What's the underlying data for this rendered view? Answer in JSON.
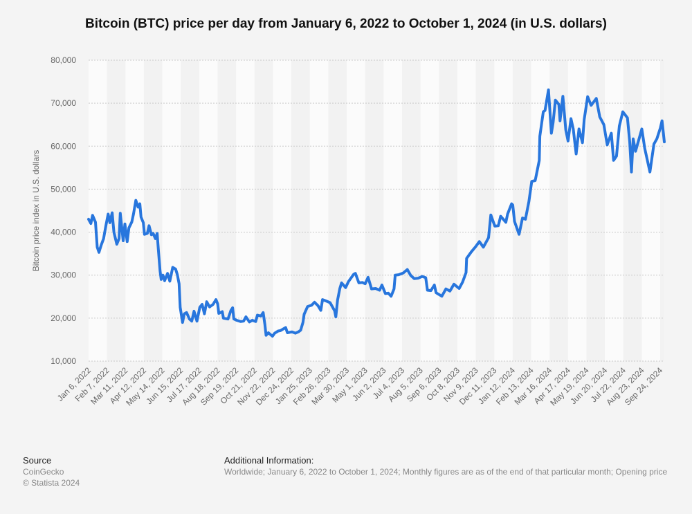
{
  "chart_data": {
    "type": "line",
    "title": "Bitcoin (BTC) price per day from January 6, 2022 to October 1, 2024 (in U.S. dollars)",
    "ylabel": "Bitcoin price index in U.S. dollars",
    "xlabel": "",
    "ylim": [
      10000,
      80000
    ],
    "xlim": [
      "Jan 6, 2022",
      "Oct 1, 2024"
    ],
    "y_ticks": [
      "10,000",
      "20,000",
      "30,000",
      "40,000",
      "50,000",
      "60,000",
      "70,000",
      "80,000"
    ],
    "y_tick_values": [
      10000,
      20000,
      30000,
      40000,
      50000,
      60000,
      70000,
      80000
    ],
    "x_ticks": [
      "Jan 6, 2022",
      "Feb 7, 2022",
      "Mar 11, 2022",
      "Apr 12, 2022",
      "May 14, 2022",
      "Jun 15, 2022",
      "Jul 17, 2022",
      "Aug 18, 2022",
      "Sep 19, 2022",
      "Oct 21, 2022",
      "Nov 22, 2022",
      "Dec 24, 2022",
      "Jan 25, 2023",
      "Feb 26, 2023",
      "Mar 30, 2023",
      "May 1, 2023",
      "Jun 2, 2023",
      "Jul 4, 2023",
      "Aug 5, 2023",
      "Sep 6, 2023",
      "Oct 8, 2023",
      "Nov 9, 2023",
      "Dec 11, 2023",
      "Jan 12, 2024",
      "Feb 13, 2024",
      "Mar 16, 2024",
      "Apr 17, 2024",
      "May 19, 2024",
      "Jun 20, 2024",
      "Jul 22, 2024",
      "Aug 23, 2024",
      "Sep 24, 2024"
    ],
    "grid": true,
    "line_color": "#2876dd",
    "series": [
      {
        "points": [
          [
            "2022-01-06",
            43000
          ],
          [
            "2022-01-10",
            42000
          ],
          [
            "2022-01-13",
            43900
          ],
          [
            "2022-01-18",
            42300
          ],
          [
            "2022-01-21",
            36500
          ],
          [
            "2022-01-24",
            35300
          ],
          [
            "2022-01-28",
            37000
          ],
          [
            "2022-02-01",
            38500
          ],
          [
            "2022-02-05",
            41500
          ],
          [
            "2022-02-09",
            44200
          ],
          [
            "2022-02-12",
            42200
          ],
          [
            "2022-02-16",
            44500
          ],
          [
            "2022-02-19",
            40000
          ],
          [
            "2022-02-24",
            37200
          ],
          [
            "2022-02-28",
            38500
          ],
          [
            "2022-03-02",
            44400
          ],
          [
            "2022-03-07",
            38000
          ],
          [
            "2022-03-10",
            41900
          ],
          [
            "2022-03-14",
            37800
          ],
          [
            "2022-03-17",
            41000
          ],
          [
            "2022-03-22",
            42400
          ],
          [
            "2022-03-25",
            44300
          ],
          [
            "2022-03-29",
            47400
          ],
          [
            "2022-04-02",
            45800
          ],
          [
            "2022-04-05",
            46600
          ],
          [
            "2022-04-07",
            43500
          ],
          [
            "2022-04-11",
            42200
          ],
          [
            "2022-04-13",
            39500
          ],
          [
            "2022-04-18",
            39700
          ],
          [
            "2022-04-21",
            41500
          ],
          [
            "2022-04-25",
            39400
          ],
          [
            "2022-04-28",
            39700
          ],
          [
            "2022-05-02",
            38500
          ],
          [
            "2022-05-05",
            39700
          ],
          [
            "2022-05-07",
            36000
          ],
          [
            "2022-05-10",
            31000
          ],
          [
            "2022-05-12",
            29000
          ],
          [
            "2022-05-15",
            30000
          ],
          [
            "2022-05-18",
            28700
          ],
          [
            "2022-05-23",
            30400
          ],
          [
            "2022-05-27",
            28600
          ],
          [
            "2022-06-01",
            31800
          ],
          [
            "2022-06-06",
            31400
          ],
          [
            "2022-06-09",
            30100
          ],
          [
            "2022-06-12",
            28000
          ],
          [
            "2022-06-14",
            22500
          ],
          [
            "2022-06-18",
            19000
          ],
          [
            "2022-06-21",
            21000
          ],
          [
            "2022-06-25",
            21300
          ],
          [
            "2022-06-30",
            19800
          ],
          [
            "2022-07-04",
            19300
          ],
          [
            "2022-07-08",
            21600
          ],
          [
            "2022-07-13",
            19300
          ],
          [
            "2022-07-18",
            22500
          ],
          [
            "2022-07-22",
            23200
          ],
          [
            "2022-07-26",
            21000
          ],
          [
            "2022-07-30",
            23800
          ],
          [
            "2022-08-04",
            22600
          ],
          [
            "2022-08-10",
            23200
          ],
          [
            "2022-08-15",
            24300
          ],
          [
            "2022-08-18",
            23300
          ],
          [
            "2022-08-20",
            21100
          ],
          [
            "2022-08-26",
            21500
          ],
          [
            "2022-08-28",
            20000
          ],
          [
            "2022-09-05",
            19800
          ],
          [
            "2022-09-10",
            21800
          ],
          [
            "2022-09-13",
            22400
          ],
          [
            "2022-09-15",
            19800
          ],
          [
            "2022-09-20",
            19500
          ],
          [
            "2022-09-27",
            19200
          ],
          [
            "2022-10-02",
            19300
          ],
          [
            "2022-10-06",
            20300
          ],
          [
            "2022-10-12",
            19100
          ],
          [
            "2022-10-17",
            19500
          ],
          [
            "2022-10-23",
            19200
          ],
          [
            "2022-10-26",
            20700
          ],
          [
            "2022-11-01",
            20500
          ],
          [
            "2022-11-05",
            21300
          ],
          [
            "2022-11-08",
            18500
          ],
          [
            "2022-11-10",
            16000
          ],
          [
            "2022-11-14",
            16600
          ],
          [
            "2022-11-21",
            15800
          ],
          [
            "2022-11-25",
            16500
          ],
          [
            "2022-12-01",
            17000
          ],
          [
            "2022-12-05",
            17100
          ],
          [
            "2022-12-14",
            17800
          ],
          [
            "2022-12-17",
            16600
          ],
          [
            "2022-12-25",
            16800
          ],
          [
            "2022-12-31",
            16500
          ],
          [
            "2023-01-05",
            16800
          ],
          [
            "2023-01-09",
            17200
          ],
          [
            "2023-01-13",
            19000
          ],
          [
            "2023-01-15",
            20900
          ],
          [
            "2023-01-21",
            22700
          ],
          [
            "2023-01-28",
            23000
          ],
          [
            "2023-02-02",
            23700
          ],
          [
            "2023-02-08",
            22900
          ],
          [
            "2023-02-13",
            21800
          ],
          [
            "2023-02-16",
            24300
          ],
          [
            "2023-02-22",
            24000
          ],
          [
            "2023-03-01",
            23600
          ],
          [
            "2023-03-09",
            21700
          ],
          [
            "2023-03-11",
            20300
          ],
          [
            "2023-03-14",
            24200
          ],
          [
            "2023-03-18",
            26900
          ],
          [
            "2023-03-21",
            28200
          ],
          [
            "2023-03-28",
            27100
          ],
          [
            "2023-04-02",
            28500
          ],
          [
            "2023-04-11",
            30200
          ],
          [
            "2023-04-14",
            30400
          ],
          [
            "2023-04-20",
            28200
          ],
          [
            "2023-04-26",
            28300
          ],
          [
            "2023-05-01",
            28000
          ],
          [
            "2023-05-06",
            29500
          ],
          [
            "2023-05-12",
            26800
          ],
          [
            "2023-05-19",
            26900
          ],
          [
            "2023-05-26",
            26500
          ],
          [
            "2023-05-30",
            27700
          ],
          [
            "2023-06-05",
            25700
          ],
          [
            "2023-06-10",
            25800
          ],
          [
            "2023-06-15",
            25100
          ],
          [
            "2023-06-20",
            26800
          ],
          [
            "2023-06-22",
            30000
          ],
          [
            "2023-06-28",
            30100
          ],
          [
            "2023-07-06",
            30500
          ],
          [
            "2023-07-13",
            31300
          ],
          [
            "2023-07-19",
            29900
          ],
          [
            "2023-07-25",
            29200
          ],
          [
            "2023-08-01",
            29300
          ],
          [
            "2023-08-08",
            29700
          ],
          [
            "2023-08-14",
            29400
          ],
          [
            "2023-08-17",
            26500
          ],
          [
            "2023-08-23",
            26400
          ],
          [
            "2023-08-29",
            27700
          ],
          [
            "2023-09-01",
            25900
          ],
          [
            "2023-09-11",
            25100
          ],
          [
            "2023-09-18",
            26800
          ],
          [
            "2023-09-25",
            26300
          ],
          [
            "2023-10-02",
            27900
          ],
          [
            "2023-10-11",
            26900
          ],
          [
            "2023-10-17",
            28400
          ],
          [
            "2023-10-23",
            30600
          ],
          [
            "2023-10-24",
            33900
          ],
          [
            "2023-11-01",
            35400
          ],
          [
            "2023-11-09",
            36700
          ],
          [
            "2023-11-15",
            37800
          ],
          [
            "2023-11-22",
            36500
          ],
          [
            "2023-12-01",
            38700
          ],
          [
            "2023-12-05",
            44000
          ],
          [
            "2023-12-12",
            41400
          ],
          [
            "2023-12-18",
            41500
          ],
          [
            "2023-12-22",
            43700
          ],
          [
            "2023-12-31",
            42300
          ],
          [
            "2024-01-03",
            44200
          ],
          [
            "2024-01-10",
            46600
          ],
          [
            "2024-01-12",
            46300
          ],
          [
            "2024-01-15",
            42500
          ],
          [
            "2024-01-23",
            39500
          ],
          [
            "2024-01-29",
            43300
          ],
          [
            "2024-02-03",
            43000
          ],
          [
            "2024-02-09",
            47100
          ],
          [
            "2024-02-14",
            51800
          ],
          [
            "2024-02-20",
            52000
          ],
          [
            "2024-02-27",
            56700
          ],
          [
            "2024-02-28",
            62300
          ],
          [
            "2024-03-05",
            68000
          ],
          [
            "2024-03-08",
            68300
          ],
          [
            "2024-03-14",
            73100
          ],
          [
            "2024-03-19",
            63000
          ],
          [
            "2024-03-22",
            65500
          ],
          [
            "2024-03-26",
            70700
          ],
          [
            "2024-04-01",
            69700
          ],
          [
            "2024-04-03",
            65900
          ],
          [
            "2024-04-08",
            71600
          ],
          [
            "2024-04-13",
            63800
          ],
          [
            "2024-04-17",
            61200
          ],
          [
            "2024-04-22",
            66400
          ],
          [
            "2024-04-26",
            64000
          ],
          [
            "2024-05-01",
            58200
          ],
          [
            "2024-05-06",
            64000
          ],
          [
            "2024-05-12",
            60800
          ],
          [
            "2024-05-15",
            66200
          ],
          [
            "2024-05-21",
            71500
          ],
          [
            "2024-05-27",
            69500
          ],
          [
            "2024-06-05",
            71100
          ],
          [
            "2024-06-11",
            66800
          ],
          [
            "2024-06-18",
            65000
          ],
          [
            "2024-06-24",
            60300
          ],
          [
            "2024-07-01",
            63000
          ],
          [
            "2024-07-05",
            56700
          ],
          [
            "2024-07-10",
            57700
          ],
          [
            "2024-07-15",
            64700
          ],
          [
            "2024-07-21",
            68000
          ],
          [
            "2024-07-29",
            66600
          ],
          [
            "2024-08-02",
            61000
          ],
          [
            "2024-08-05",
            54000
          ],
          [
            "2024-08-08",
            61700
          ],
          [
            "2024-08-12",
            58800
          ],
          [
            "2024-08-23",
            64000
          ],
          [
            "2024-08-28",
            59500
          ],
          [
            "2024-09-06",
            54000
          ],
          [
            "2024-09-13",
            60500
          ],
          [
            "2024-09-18",
            61700
          ],
          [
            "2024-09-24",
            64200
          ],
          [
            "2024-09-27",
            65900
          ],
          [
            "2024-10-01",
            61000
          ]
        ]
      }
    ]
  },
  "footer": {
    "source_heading": "Source",
    "source_lines": [
      "CoinGecko",
      "© Statista 2024"
    ],
    "info_heading": "Additional Information:",
    "info_text": "Worldwide; January 6, 2022 to October 1, 2024; Monthly figures are as of the end of that particular month; Opening price"
  }
}
